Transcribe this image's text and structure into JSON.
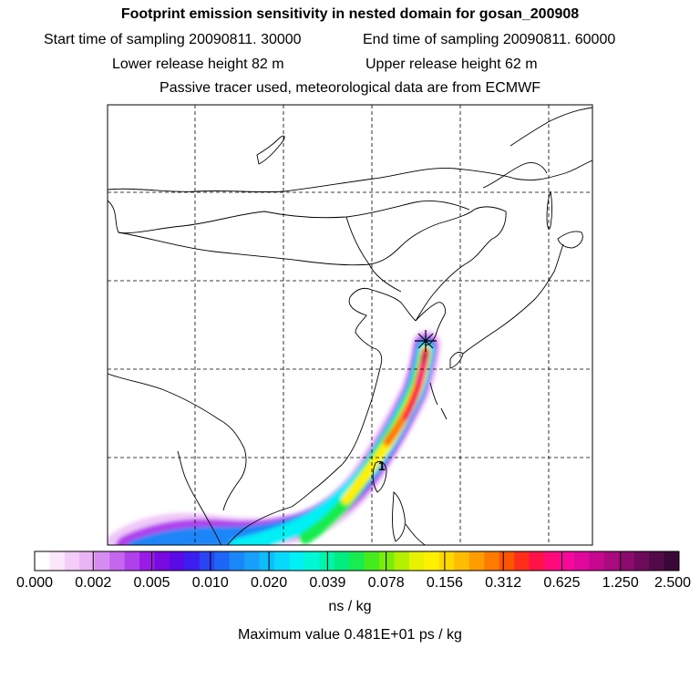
{
  "header": {
    "title": "Footprint emission sensitivity in nested domain for gosan_200908",
    "start_label": "Start time of sampling 20090811. 30000",
    "end_label": "End time of sampling 20090811. 60000",
    "lower_label": "Lower release height   82 m",
    "upper_label": "Upper release height   62 m",
    "info": "Passive tracer used, meteorological data are from ECMWF"
  },
  "map": {
    "receptor_marker": "receptor-star",
    "point_label": "1"
  },
  "colorbar": {
    "tick_labels": [
      "0.000",
      "0.002",
      "0.005",
      "0.010",
      "0.020",
      "0.039",
      "0.078",
      "0.156",
      "0.312",
      "0.625",
      "1.250",
      "2.500"
    ],
    "colors": [
      "#ffffff",
      "#fbe6fb",
      "#f3ccf7",
      "#eab3f3",
      "#d68cf0",
      "#c466ee",
      "#b040ec",
      "#9a1ae8",
      "#7a08e0",
      "#5a0ae6",
      "#3c1ff0",
      "#2a44f4",
      "#1e66f6",
      "#1a86f8",
      "#18a0fa",
      "#10bcfc",
      "#08d8fc",
      "#00f0f6",
      "#00f8d6",
      "#00f4ac",
      "#00ee80",
      "#18ec50",
      "#46ec1e",
      "#78ee0a",
      "#b4f000",
      "#e8f200",
      "#fff000",
      "#ffd800",
      "#ffbc00",
      "#ff9c00",
      "#ff7a00",
      "#ff5400",
      "#ff2e1a",
      "#ff1248",
      "#ff0a78",
      "#f6089a",
      "#e0089c",
      "#c6088e",
      "#aa0a80",
      "#8c0a6e",
      "#6e0a5c",
      "#520a48",
      "#3a0838"
    ],
    "units": "ns / kg",
    "max_value": "Maximum value  0.481E+01 ps / kg"
  }
}
